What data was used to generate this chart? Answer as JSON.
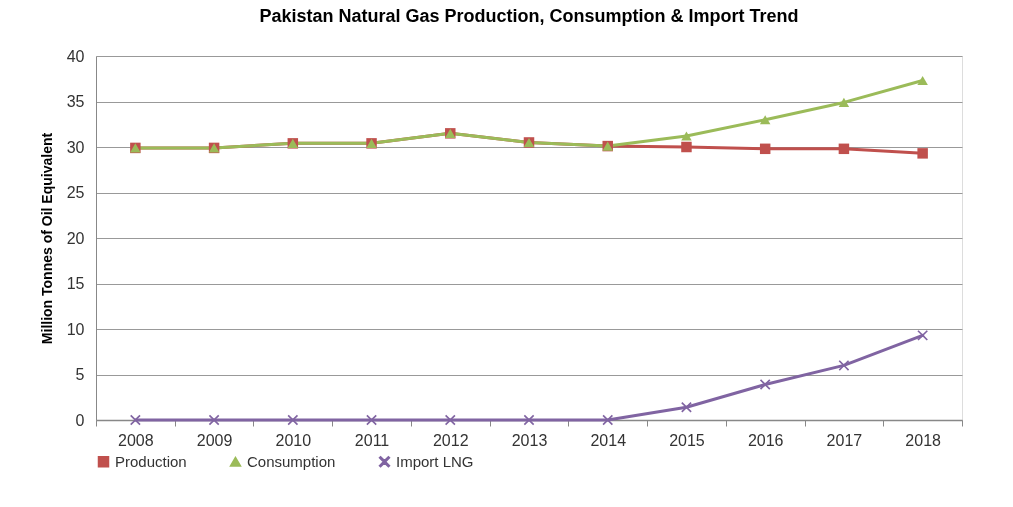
{
  "chart_data": {
    "type": "line",
    "title": "Pakistan Natural Gas Production, Consumption & Import Trend",
    "ylabel": "Million Tonnes of Oil Equivalent",
    "categories": [
      "2008",
      "2009",
      "2010",
      "2011",
      "2012",
      "2013",
      "2014",
      "2015",
      "2016",
      "2017",
      "2018"
    ],
    "series": [
      {
        "name": "Production",
        "color": "#c0504d",
        "marker": "square",
        "values": [
          29.9,
          29.9,
          30.4,
          30.4,
          31.5,
          30.5,
          30.1,
          30.0,
          29.8,
          29.8,
          29.3
        ]
      },
      {
        "name": "Consumption",
        "color": "#9bbb59",
        "marker": "triangle",
        "values": [
          29.9,
          29.9,
          30.4,
          30.4,
          31.5,
          30.5,
          30.1,
          31.2,
          33.0,
          34.9,
          37.3
        ]
      },
      {
        "name": "Import LNG",
        "color": "#8064a2",
        "marker": "cross",
        "values": [
          0,
          0,
          0,
          0,
          0,
          0,
          0,
          1.4,
          3.9,
          6.0,
          9.3
        ]
      }
    ],
    "ylim": [
      0,
      40
    ],
    "yticks": [
      0,
      5,
      10,
      15,
      20,
      25,
      30,
      35,
      40
    ],
    "grid": "y",
    "legend": "bottom",
    "line_style": "solid"
  }
}
